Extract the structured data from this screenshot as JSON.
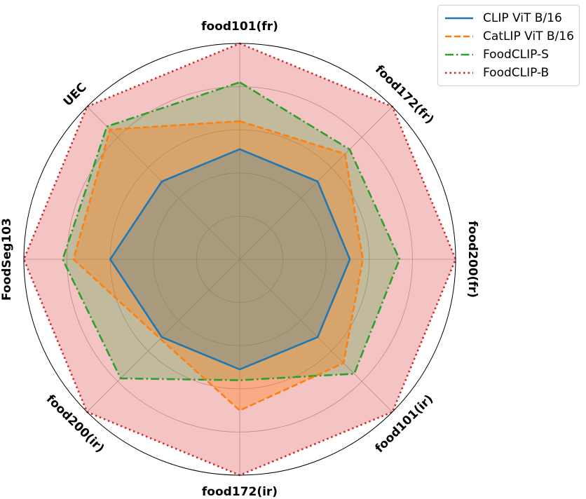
{
  "chart_data": {
    "type": "radar",
    "axes": [
      "food101(fr)",
      "food172(fr)",
      "food200(fr)",
      "food101(ir)",
      "food172(ir)",
      "food200(ir)",
      "FoodSeg103",
      "UEC"
    ],
    "rlim": [
      0,
      1
    ],
    "grid": true,
    "legend_position": "top-right",
    "series": [
      {
        "name": "CLIP ViT B/16",
        "color": "#1f77b4",
        "line_style": "solid",
        "values": [
          0.51,
          0.51,
          0.51,
          0.51,
          0.51,
          0.51,
          0.6,
          0.51
        ]
      },
      {
        "name": "CatLIP ViT B/16",
        "color": "#ff7f0e",
        "line_style": "dashed",
        "values": [
          0.64,
          0.69,
          0.57,
          0.68,
          0.7,
          0.52,
          0.77,
          0.85
        ]
      },
      {
        "name": "FoodCLIP-S",
        "color": "#2ca02c",
        "line_style": "dash-dot",
        "values": [
          0.82,
          0.72,
          0.74,
          0.75,
          0.56,
          0.78,
          0.82,
          0.87
        ]
      },
      {
        "name": "FoodCLIP-B",
        "color": "#d62728",
        "line_style": "dotted",
        "values": [
          1.0,
          1.0,
          1.0,
          1.0,
          1.0,
          1.0,
          1.0,
          1.0
        ]
      }
    ]
  }
}
